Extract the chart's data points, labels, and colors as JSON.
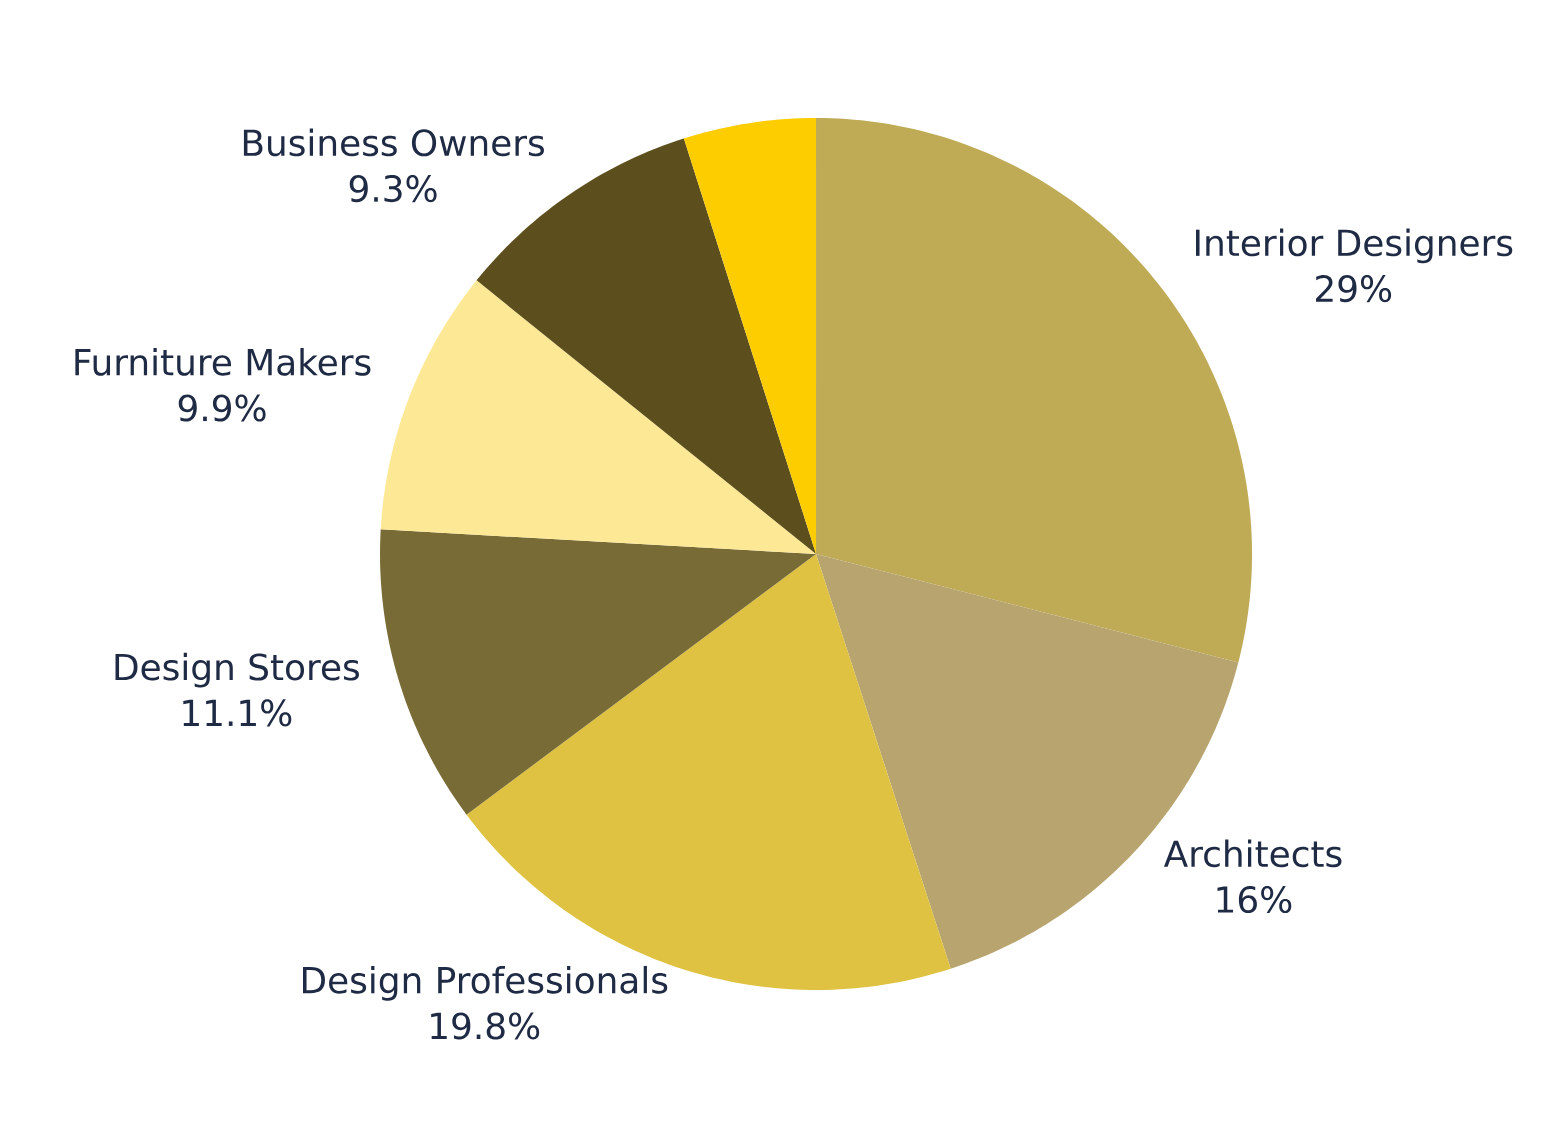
{
  "chart_data": {
    "type": "pie",
    "categories": [
      "Interior Designers",
      "Architects",
      "Design Professionals",
      "Design Stores",
      "Furniture Makers",
      "Business Owners",
      null
    ],
    "values": [
      29,
      16,
      19.8,
      11.1,
      9.9,
      9.3,
      4.9
    ],
    "colors": [
      "#bfab55",
      "#b8a46e",
      "#dfc241",
      "#786b36",
      "#fde995",
      "#5d4f1d",
      "#fecd00"
    ],
    "value_labels": [
      "29%",
      "16%",
      "19.8%",
      "11.1%",
      "9.9%",
      "9.3%",
      null
    ]
  }
}
